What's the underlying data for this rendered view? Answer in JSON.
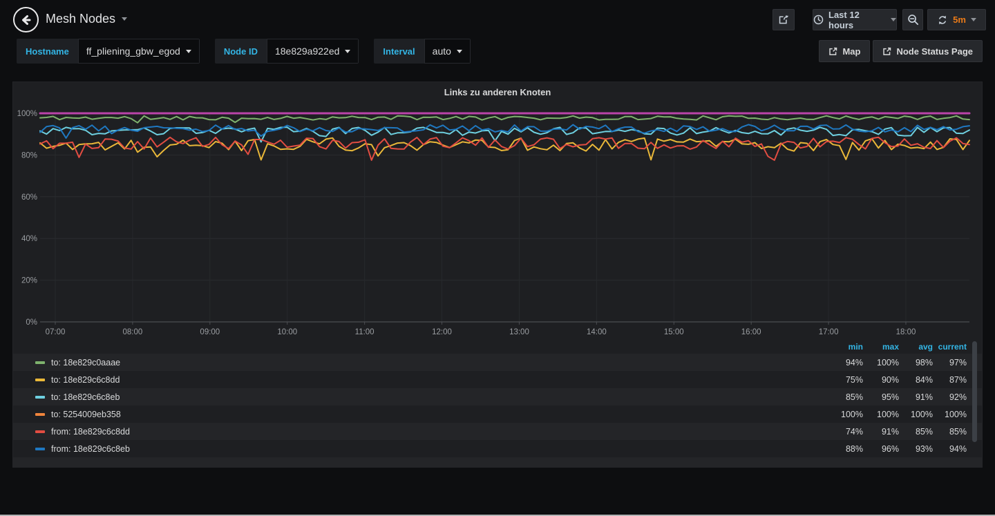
{
  "header": {
    "title": "Mesh Nodes",
    "time_range": "Last 12 hours",
    "refresh_interval": "5m",
    "map_link": "Map",
    "node_status_link": "Node Status Page"
  },
  "variables": [
    {
      "label": "Hostname",
      "value": "ff_pliening_gbw_egod"
    },
    {
      "label": "Node ID",
      "value": "18e829a922ed"
    },
    {
      "label": "Interval",
      "value": "auto"
    }
  ],
  "panel": {
    "title": "Links zu anderen Knoten",
    "legend_columns": [
      "min",
      "max",
      "avg",
      "current"
    ]
  },
  "chart_data": {
    "type": "line",
    "title": "Links zu anderen Knoten",
    "unit": "%",
    "ylim": [
      0,
      100
    ],
    "y_ticks": [
      0,
      20,
      40,
      60,
      80,
      100
    ],
    "x_ticks": [
      "07:00",
      "08:00",
      "09:00",
      "10:00",
      "11:00",
      "12:00",
      "13:00",
      "14:00",
      "15:00",
      "16:00",
      "17:00",
      "18:00"
    ],
    "x_range_label": "Last 12 hours",
    "points_per_series": 144,
    "grid": true,
    "legend_position": "bottom-table",
    "series": [
      {
        "name": "to: 18e829c0aaae",
        "color": "#7eb26d",
        "min": 94,
        "max": 100,
        "avg": 98,
        "current": 97,
        "baseline": 97.8,
        "amp": 1.0,
        "dip": 2.5,
        "seed": 11,
        "width": 2
      },
      {
        "name": "to: 18e829c6c8dd",
        "color": "#eab839",
        "min": 75,
        "max": 90,
        "avg": 84,
        "current": 87,
        "baseline": 85.0,
        "amp": 3.2,
        "dip": 8,
        "seed": 22,
        "width": 2
      },
      {
        "name": "to: 18e829c6c8eb",
        "color": "#6ed0e0",
        "min": 85,
        "max": 95,
        "avg": 91,
        "current": 92,
        "baseline": 91.3,
        "amp": 2.1,
        "dip": 4,
        "seed": 33,
        "width": 2
      },
      {
        "name": "to: 5254009eb358",
        "color": "#ef843c",
        "min": 100,
        "max": 100,
        "avg": 100,
        "current": 100,
        "baseline": 100,
        "amp": 0,
        "dip": 0,
        "seed": 44,
        "width": 2
      },
      {
        "name": "from: 18e829c6c8dd",
        "color": "#e24d42",
        "min": 74,
        "max": 91,
        "avg": 85,
        "current": 85,
        "baseline": 85.6,
        "amp": 2.9,
        "dip": 9,
        "seed": 55,
        "width": 2
      },
      {
        "name": "from: 18e829c6c8eb",
        "color": "#1f78c1",
        "min": 88,
        "max": 96,
        "avg": 93,
        "current": 94,
        "baseline": 92.8,
        "amp": 1.8,
        "dip": 3,
        "seed": 66,
        "width": 2
      },
      {
        "name": "",
        "color": "#ba43a9",
        "baseline": 100,
        "amp": 0,
        "dip": 0,
        "seed": 77,
        "width": 3,
        "note": "legend entry scrolled out of view; flat line at 100%"
      }
    ]
  },
  "colors": {
    "accent_cyan": "#33b5e5",
    "accent_orange": "#eb7b18",
    "page_bg": "#0d0e10",
    "panel_bg": "#1e1f22"
  }
}
